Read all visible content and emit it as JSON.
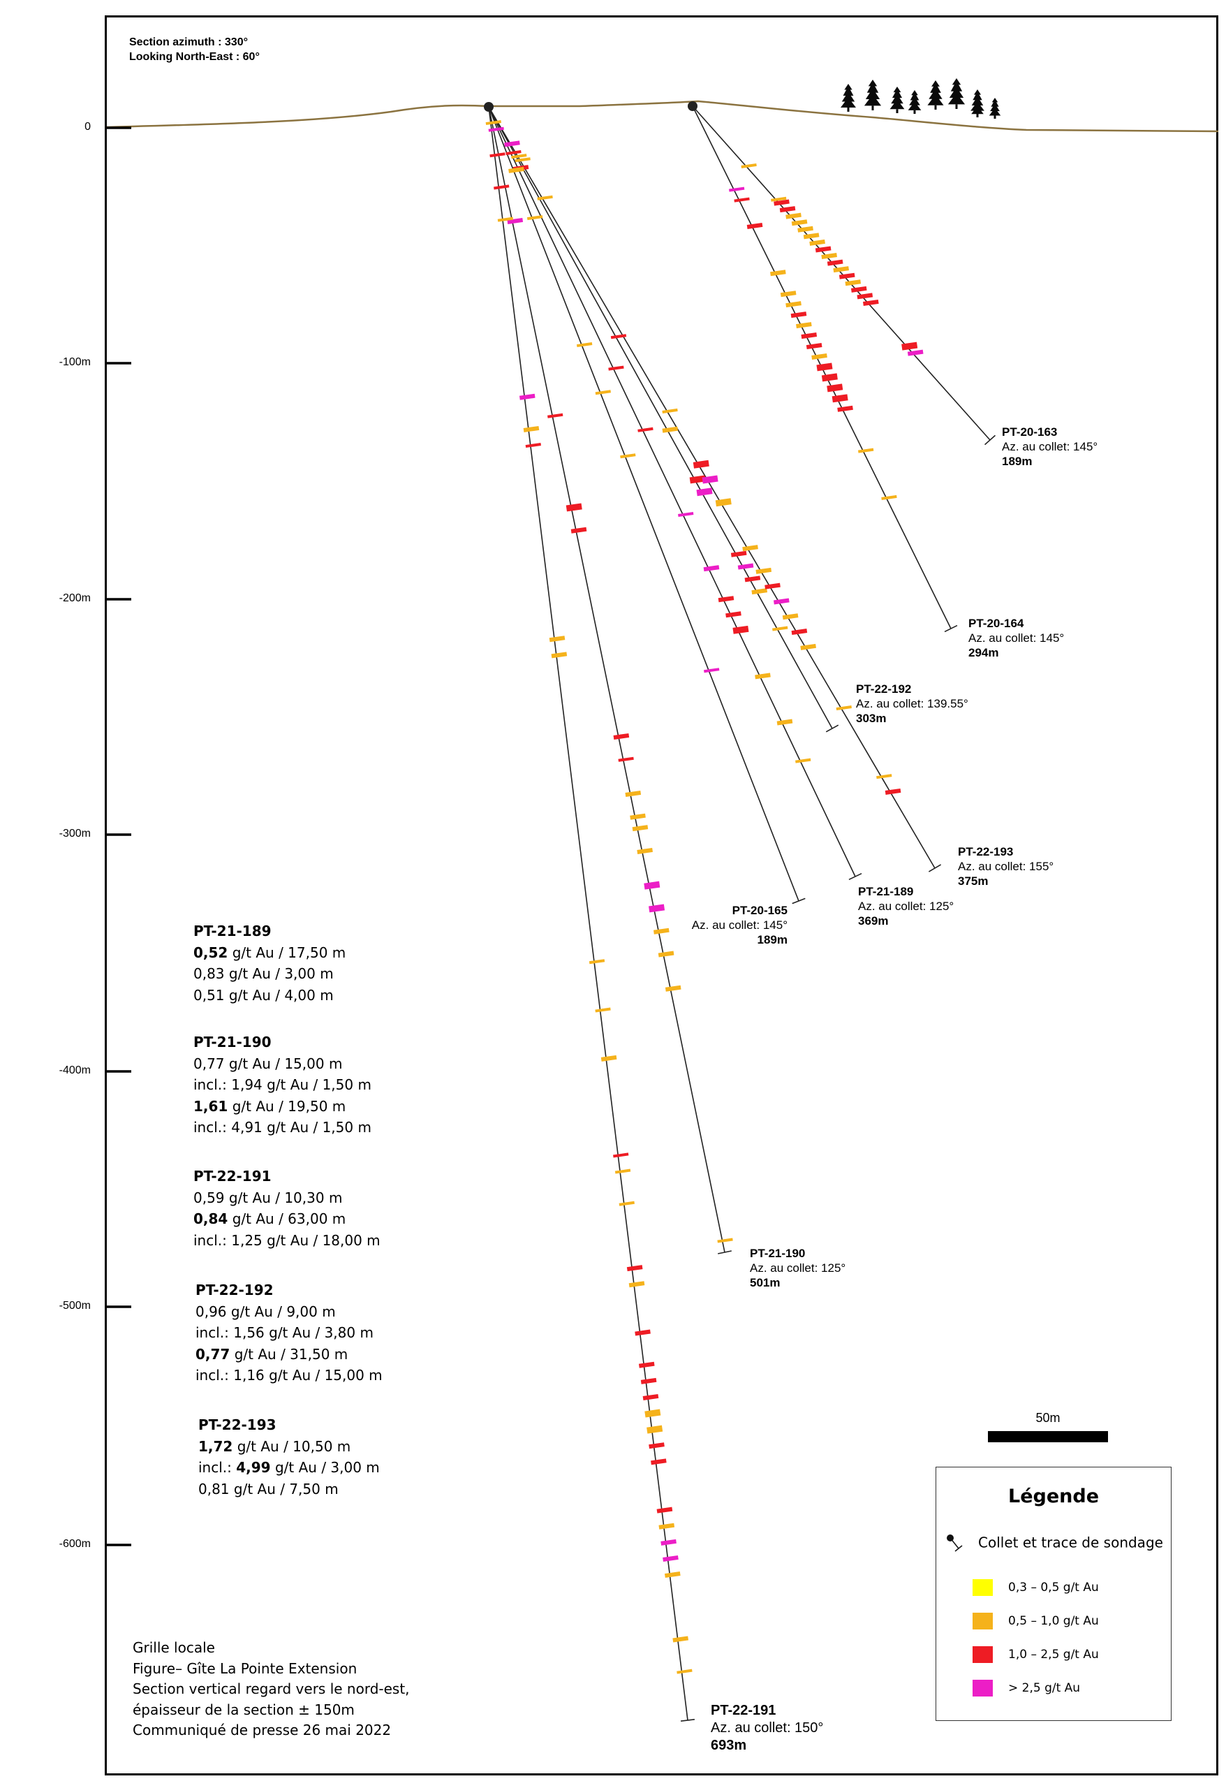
{
  "header": {
    "line1": "Section azimuth : 330°",
    "line2": "Looking North-East : 60°"
  },
  "depth_axis": [
    "0",
    "-100m",
    "-200m",
    "-300m",
    "-400m",
    "-500m",
    "-600m"
  ],
  "colors": {
    "grade_low": "#ffff00",
    "grade_mid": "#f5b21b",
    "grade_high": "#ee1c24",
    "grade_top": "#ec1ec6",
    "topography": "#8b7340"
  },
  "holes": [
    {
      "name": "PT-20-163",
      "azimuth": "Az. au collet: 145°",
      "length": "189m"
    },
    {
      "name": "PT-20-164",
      "azimuth": "Az. au collet: 145°",
      "length": "294m"
    },
    {
      "name": "PT-22-192",
      "azimuth": "Az. au collet: 139.55°",
      "length": "303m"
    },
    {
      "name": "PT-22-193",
      "azimuth": "Az. au collet: 155°",
      "length": "375m"
    },
    {
      "name": "PT-21-189",
      "azimuth": "Az. au collet: 125°",
      "length": "369m"
    },
    {
      "name": "PT-20-165",
      "azimuth": "Az. au collet: 145°",
      "length": "189m"
    },
    {
      "name": "PT-21-190",
      "azimuth": "Az. au collet: 125°",
      "length": "501m"
    },
    {
      "name": "PT-22-191",
      "azimuth": "Az. au collet: 150°",
      "length": "693m"
    }
  ],
  "results": [
    {
      "hole": "PT-21-189",
      "lines": [
        {
          "bold": "0,52",
          "rest": " g/t Au / 17,50 m"
        },
        {
          "bold": "",
          "rest": "0,83 g/t Au / 3,00 m"
        },
        {
          "bold": "",
          "rest": "0,51 g/t Au / 4,00 m"
        }
      ]
    },
    {
      "hole": "PT-21-190",
      "lines": [
        {
          "bold": "",
          "rest": "0,77 g/t Au / 15,00 m"
        },
        {
          "bold": "",
          "rest": "incl.: 1,94 g/t Au / 1,50 m"
        },
        {
          "bold": "1,61",
          "rest": " g/t Au / 19,50 m"
        },
        {
          "bold": "",
          "rest": "incl.: 4,91 g/t Au / 1,50 m"
        }
      ]
    },
    {
      "hole": "PT-22-191",
      "lines": [
        {
          "bold": "",
          "rest": "0,59 g/t Au / 10,30 m"
        },
        {
          "bold": "0,84",
          "rest": " g/t Au / 63,00 m"
        },
        {
          "bold": "",
          "rest": "incl.: 1,25 g/t Au / 18,00 m"
        }
      ]
    },
    {
      "hole": "PT-22-192",
      "lines": [
        {
          "bold": "",
          "rest": "0,96 g/t Au / 9,00 m"
        },
        {
          "bold": "",
          "rest": "incl.: 1,56 g/t Au / 3,80 m"
        },
        {
          "bold": "0,77",
          "rest": " g/t Au / 31,50 m"
        },
        {
          "bold": "",
          "rest": "incl.: 1,16 g/t Au / 15,00 m"
        }
      ]
    },
    {
      "hole": "PT-22-193",
      "lines": [
        {
          "bold": "1,72",
          "rest": " g/t Au / 10,50 m"
        },
        {
          "pre": "incl.: ",
          "bold": "4,99",
          "rest": " g/t Au / 3,00 m"
        },
        {
          "bold": "",
          "rest": "0,81 g/t Au / 7,50 m"
        }
      ]
    }
  ],
  "footnote": [
    "Grille locale",
    "Figure– Gîte La Pointe Extension",
    "Section vertical regard vers le nord-est,",
    "épaisseur de la section ± 150m",
    "Communiqué de presse 26 mai 2022"
  ],
  "scale_bar": {
    "label": "50m"
  },
  "legend": {
    "title": "Légende",
    "collet": "Collet et trace de sondage",
    "items": [
      {
        "label": "0,3 – 0,5 g/t Au",
        "color": "#ffff00"
      },
      {
        "label": "0,5 – 1,0 g/t Au",
        "color": "#f5b21b"
      },
      {
        "label": "1,0 – 2,5 g/t Au",
        "color": "#ee1c24"
      },
      {
        "label": "> 2,5 g/t Au",
        "color": "#ec1ec6"
      }
    ]
  }
}
